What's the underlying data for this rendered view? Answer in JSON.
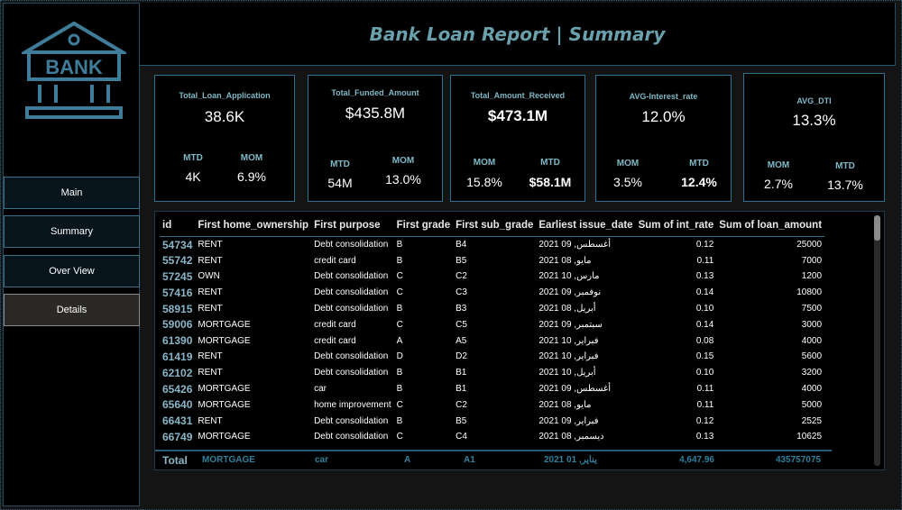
{
  "header": {
    "title": "Bank Loan Report | Summary"
  },
  "sidebar": {
    "logo_text": "BANK",
    "items": [
      {
        "label": "Main"
      },
      {
        "label": "Summary"
      },
      {
        "label": "Over View"
      },
      {
        "label": "Details"
      }
    ]
  },
  "kpis": [
    {
      "title": "Total_Loan_Application",
      "value": "38.6K",
      "left_label": "MTD",
      "left_value": "4K",
      "right_label": "MOM",
      "right_value": "6.9%"
    },
    {
      "title": "Total_Funded_Amount",
      "value": "$435.8M",
      "left_label": "MTD",
      "left_value": "54M",
      "right_label": "MOM",
      "right_value": "13.0%"
    },
    {
      "title": "Total_Amount_Received",
      "value": "$473.1M",
      "left_label": "MOM",
      "left_value": "15.8%",
      "right_label": "MTD",
      "right_value": "$58.1M"
    },
    {
      "title": "AVG-Interest_rate",
      "value": "12.0%",
      "left_label": "MOM",
      "left_value": "3.5%",
      "right_label": "MTD",
      "right_value": "12.4%"
    },
    {
      "title": "AVG_DTI",
      "value": "13.3%",
      "left_label": "MOM",
      "left_value": "2.7%",
      "right_label": "MTD",
      "right_value": "13.7%"
    }
  ],
  "table": {
    "columns": [
      "id",
      "First home_ownership",
      "First purpose",
      "First grade",
      "First sub_grade",
      "Earliest issue_date",
      "Sum of int_rate",
      "Sum of loan_amount"
    ],
    "rows": [
      [
        "54734",
        "RENT",
        "Debt consolidation",
        "B",
        "B4",
        "أغسطس, 09 2021",
        "0.12",
        "25000"
      ],
      [
        "55742",
        "RENT",
        "credit card",
        "B",
        "B5",
        "مايو, 08 2021",
        "0.11",
        "7000"
      ],
      [
        "57245",
        "OWN",
        "Debt consolidation",
        "C",
        "C2",
        "مارس, 10 2021",
        "0.13",
        "1200"
      ],
      [
        "57416",
        "RENT",
        "Debt consolidation",
        "C",
        "C3",
        "نوفمبر, 09 2021",
        "0.14",
        "10800"
      ],
      [
        "58915",
        "RENT",
        "Debt consolidation",
        "B",
        "B3",
        "أبريل, 08 2021",
        "0.10",
        "7500"
      ],
      [
        "59006",
        "MORTGAGE",
        "credit card",
        "C",
        "C5",
        "سبتمبر, 09 2021",
        "0.14",
        "3000"
      ],
      [
        "61390",
        "MORTGAGE",
        "credit card",
        "A",
        "A5",
        "فبراير, 10 2021",
        "0.08",
        "4000"
      ],
      [
        "61419",
        "RENT",
        "Debt consolidation",
        "D",
        "D2",
        "فبراير, 10 2021",
        "0.15",
        "5600"
      ],
      [
        "62102",
        "RENT",
        "Debt consolidation",
        "B",
        "B1",
        "أبريل, 10 2021",
        "0.10",
        "3200"
      ],
      [
        "65426",
        "MORTGAGE",
        "car",
        "B",
        "B1",
        "أغسطس, 09 2021",
        "0.11",
        "4000"
      ],
      [
        "65640",
        "MORTGAGE",
        "home improvement",
        "C",
        "C2",
        "مايو, 08 2021",
        "0.11",
        "5000"
      ],
      [
        "66431",
        "RENT",
        "Debt consolidation",
        "B",
        "B5",
        "فبراير, 09 2021",
        "0.12",
        "2525"
      ],
      [
        "66749",
        "MORTGAGE",
        "Debt consolidation",
        "C",
        "C4",
        "ديسمبر, 08 2021",
        "0.13",
        "10625"
      ]
    ],
    "total": {
      "label": "Total",
      "home_ownership": "MORTGAGE",
      "purpose": "car",
      "grade": "A",
      "sub_grade": "A1",
      "issue_date": "يناير, 01 2021",
      "int_rate": "4,647.96",
      "loan_amount": "435757075"
    }
  },
  "colors": {
    "accent": "#2f6f8f",
    "label": "#7fb8c6",
    "title": "#6a9fac"
  }
}
